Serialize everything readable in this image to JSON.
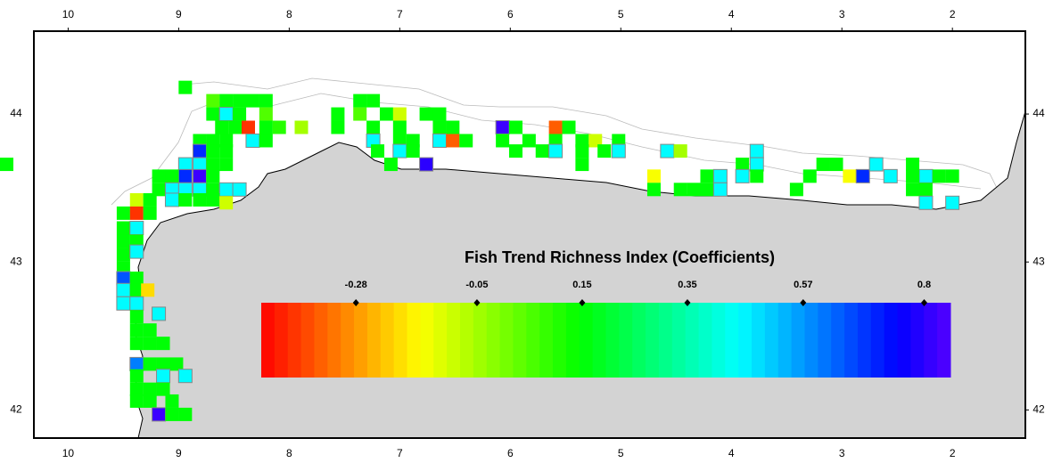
{
  "map": {
    "xticks": [
      10,
      9,
      8,
      7,
      6,
      5,
      4,
      3,
      2
    ],
    "yticks": [
      44,
      43,
      42
    ],
    "xlim": [
      10.31,
      1.34
    ],
    "ylim": [
      41.81,
      44.56
    ],
    "cells": {
      "lon": [
        8.94,
        8.69,
        8.57,
        8.45,
        8.33,
        8.21,
        8.69,
        8.57,
        8.45,
        8.21,
        8.61,
        8.49,
        8.37,
        8.21,
        8.09,
        7.89,
        8.81,
        8.69,
        8.57,
        8.33,
        8.21,
        8.81,
        8.69,
        8.57,
        8.94,
        8.81,
        8.69,
        8.57,
        8.94,
        8.81,
        8.69,
        9.18,
        9.06,
        9.18,
        9.06,
        8.94,
        8.81,
        8.69,
        8.57,
        8.45,
        9.38,
        9.26,
        9.06,
        8.94,
        8.81,
        8.69,
        8.57,
        9.5,
        9.38,
        9.26,
        9.5,
        9.38,
        9.5,
        9.38,
        9.5,
        9.38,
        9.5,
        9.5,
        9.38,
        9.5,
        9.38,
        9.28,
        9.5,
        9.38,
        9.38,
        9.18,
        9.38,
        9.26,
        9.38,
        9.26,
        9.14,
        9.38,
        9.26,
        9.14,
        9.02,
        9.38,
        9.14,
        8.94,
        9.38,
        9.26,
        9.14,
        9.38,
        9.26,
        9.06,
        9.18,
        9.06,
        8.94,
        7.56,
        7.36,
        7.24,
        7.36,
        7.12,
        7.0,
        6.76,
        6.64,
        7.56,
        7.24,
        7.0,
        6.64,
        6.52,
        7.24,
        7.0,
        6.88,
        6.64,
        6.52,
        6.4,
        7.2,
        7.0,
        6.88,
        7.08,
        6.76,
        6.07,
        5.95,
        6.07,
        5.83,
        5.59,
        5.47,
        5.59,
        5.35,
        5.23,
        5.02,
        5.95,
        5.71,
        5.59,
        5.35,
        5.15,
        5.02,
        5.35,
        4.58,
        4.46,
        4.7,
        4.22,
        4.1,
        4.7,
        4.46,
        4.34,
        4.22,
        4.1,
        3.9,
        3.77,
        3.77,
        3.9,
        3.77,
        3.41,
        3.29,
        3.17,
        3.05,
        2.93,
        2.81,
        2.69,
        2.56,
        2.36,
        2.24,
        2.12,
        2.0,
        2.36,
        2.24,
        2.36,
        2.0,
        2.24
      ],
      "lat": [
        44.18,
        44.09,
        44.09,
        44.09,
        44.09,
        44.09,
        44.0,
        44.0,
        44.0,
        44.0,
        43.91,
        43.91,
        43.91,
        43.91,
        43.91,
        43.91,
        43.82,
        43.82,
        43.82,
        43.82,
        43.82,
        43.75,
        43.75,
        43.75,
        43.66,
        43.66,
        43.66,
        43.66,
        43.58,
        43.58,
        43.58,
        43.58,
        43.58,
        43.49,
        43.49,
        43.49,
        43.49,
        43.49,
        43.49,
        43.49,
        43.42,
        43.42,
        43.42,
        43.42,
        43.42,
        43.42,
        43.4,
        43.33,
        43.33,
        43.33,
        43.23,
        43.23,
        43.14,
        43.14,
        43.05,
        43.07,
        42.96,
        42.89,
        42.89,
        42.81,
        42.81,
        42.81,
        42.72,
        42.72,
        42.63,
        42.65,
        42.54,
        42.54,
        42.45,
        42.45,
        42.45,
        42.31,
        42.31,
        42.31,
        42.31,
        42.23,
        42.23,
        42.23,
        42.14,
        42.14,
        42.14,
        42.06,
        42.06,
        42.06,
        41.97,
        41.97,
        41.97,
        44.0,
        44.09,
        44.09,
        44.0,
        44.0,
        44.0,
        44.0,
        44.0,
        43.91,
        43.91,
        43.91,
        43.91,
        43.91,
        43.82,
        43.82,
        43.82,
        43.82,
        43.82,
        43.82,
        43.75,
        43.75,
        43.75,
        43.66,
        43.66,
        43.91,
        43.91,
        43.82,
        43.82,
        43.91,
        43.91,
        43.82,
        43.82,
        43.82,
        43.82,
        43.75,
        43.75,
        43.75,
        43.75,
        43.75,
        43.75,
        43.66,
        43.75,
        43.75,
        43.58,
        43.58,
        43.58,
        43.49,
        43.49,
        43.49,
        43.49,
        43.49,
        43.66,
        43.75,
        43.66,
        43.58,
        43.58,
        43.49,
        43.58,
        43.66,
        43.66,
        43.58,
        43.58,
        43.66,
        43.58,
        43.66,
        43.58,
        43.58,
        43.58,
        43.58,
        43.49,
        43.49,
        43.4,
        43.4,
        43.66
      ],
      "value": [
        0.15,
        0.05,
        0.15,
        0.15,
        0.15,
        0.15,
        0.15,
        0.45,
        0.15,
        0.05,
        0.15,
        0.15,
        -0.4,
        0.15,
        0.1,
        -0.05,
        0.15,
        0.15,
        0.15,
        0.45,
        0.15,
        0.7,
        0.15,
        0.15,
        0.45,
        0.45,
        0.15,
        0.15,
        0.7,
        0.82,
        0.15,
        0.15,
        0.15,
        0.15,
        0.45,
        0.45,
        0.45,
        0.15,
        0.45,
        0.45,
        -0.1,
        0.15,
        0.45,
        0.15,
        0.15,
        0.15,
        -0.1,
        0.15,
        -0.4,
        0.15,
        0.15,
        0.45,
        0.15,
        0.15,
        0.15,
        0.45,
        0.15,
        0.65,
        0.15,
        0.45,
        0.15,
        -0.2,
        0.45,
        0.45,
        0.15,
        0.45,
        0.15,
        0.15,
        0.15,
        0.15,
        0.15,
        0.6,
        0.15,
        0.15,
        0.15,
        0.15,
        0.45,
        0.45,
        0.15,
        0.15,
        0.15,
        0.15,
        0.15,
        0.15,
        0.82,
        0.15,
        0.15,
        0.15,
        0.15,
        0.15,
        0.05,
        0.15,
        -0.1,
        0.15,
        0.15,
        0.15,
        0.15,
        0.15,
        0.15,
        0.15,
        0.45,
        0.15,
        0.15,
        0.45,
        -0.35,
        0.15,
        0.15,
        0.45,
        0.15,
        0.15,
        0.8,
        0.82,
        0.15,
        0.15,
        0.15,
        -0.35,
        0.15,
        0.15,
        0.15,
        -0.1,
        0.15,
        0.15,
        0.15,
        0.45,
        0.15,
        0.15,
        0.45,
        0.15,
        0.45,
        -0.05,
        -0.15,
        0.15,
        0.45,
        0.15,
        0.15,
        0.15,
        0.15,
        0.45,
        0.15,
        0.45,
        0.45,
        0.45,
        0.15,
        0.15,
        0.15,
        0.15,
        0.15,
        -0.15,
        0.7,
        0.45,
        0.45,
        0.15,
        0.45,
        0.15,
        0.15,
        0.15,
        0.15,
        0.15,
        0.45,
        0.45,
        0.15
      ]
    }
  },
  "legend": {
    "title": "Fish Trend Richness Index (Coefficients)",
    "clim": [
      -0.46,
      0.85
    ],
    "ticks": [
      -0.28,
      -0.05,
      0.15,
      0.35,
      0.57,
      0.8
    ]
  }
}
